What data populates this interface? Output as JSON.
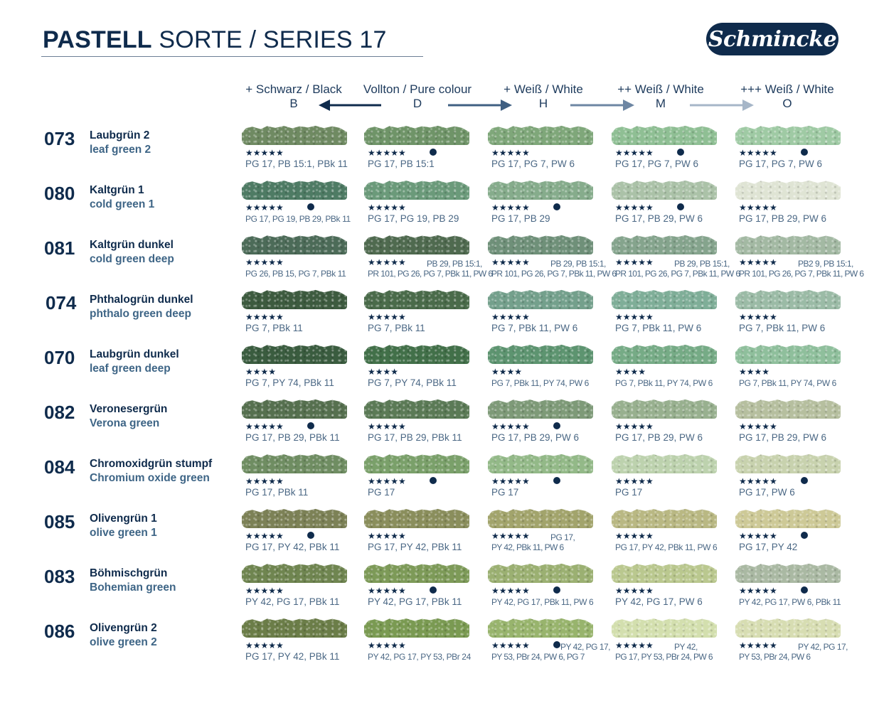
{
  "header": {
    "title_bold": "PASTELL",
    "title_rest": " SORTE / SERIES 17",
    "logo_text": "Schmincke"
  },
  "columns": [
    {
      "label": "+ Schwarz / Black",
      "letter": "B"
    },
    {
      "label": "Vollton / Pure colour",
      "letter": "D"
    },
    {
      "label": "+ Weiß / White",
      "letter": "H"
    },
    {
      "label": "++ Weiß / White",
      "letter": "M"
    },
    {
      "label": "+++ Weiß / White",
      "letter": "O"
    }
  ],
  "colors": {
    "navy": "#0f2b4c",
    "arrow_dark": "#0f2b4c",
    "arrow_mid": "#3f5f82",
    "arrow_light1": "#6d86a3",
    "arrow_light2": "#a6b6c8"
  },
  "rows": [
    {
      "code": "073",
      "name_de": "Laubgrün 2",
      "name_en": "leaf green 2",
      "cells": [
        {
          "color": "#6f8a62",
          "stars": "★★★★★",
          "dot": false,
          "pigments": "PG 17, PB 15:1, PBk 11"
        },
        {
          "color": "#6f9468",
          "stars": "★★★★★",
          "dot": true,
          "pigments": "PG 17, PB 15:1"
        },
        {
          "color": "#7fa77a",
          "stars": "★★★★★",
          "dot": false,
          "pigments": "PG 17, PG 7, PW 6"
        },
        {
          "color": "#8fbf94",
          "stars": "★★★★★",
          "dot": true,
          "pigments": "PG 17, PG 7, PW 6"
        },
        {
          "color": "#9fcaa4",
          "stars": "★★★★★",
          "dot": true,
          "pigments": "PG 17, PG 7, PW 6"
        }
      ]
    },
    {
      "code": "080",
      "name_de": "Kaltgrün 1",
      "name_en": "cold green 1",
      "cells": [
        {
          "color": "#4e7b64",
          "stars": "★★★★★",
          "dot": true,
          "pigments": "PG 17, PG 19, PB 29, PBk 11",
          "tight": true
        },
        {
          "color": "#6b9a7a",
          "stars": "★★★★★",
          "dot": false,
          "pigments": "PG 17, PG 19, PB 29"
        },
        {
          "color": "#86ac8c",
          "stars": "★★★★★",
          "dot": true,
          "pigments": "PG 17, PB 29"
        },
        {
          "color": "#abc2a8",
          "stars": "★★★★★",
          "dot": true,
          "pigments": "PG 17, PB 29, PW 6"
        },
        {
          "color": "#dfe4d4",
          "stars": "★★★★★",
          "dot": false,
          "pigments": "PG 17, PB 29, PW 6"
        }
      ]
    },
    {
      "code": "081",
      "name_de": "Kaltgrün dunkel",
      "name_en": "cold green deep",
      "cells": [
        {
          "color": "#4c6b58",
          "stars": "★★★★★",
          "dot": false,
          "pigments": "PG 26, PB 15, PG 7, PBk 11",
          "tight": true
        },
        {
          "color": "#4f6a4f",
          "stars": "★★★★★",
          "dot": false,
          "pigments_two": [
            "PB 29, PB 15:1,",
            "PR 101, PG 26, PG 7, PBk 11, PW 6"
          ]
        },
        {
          "color": "#6f9079",
          "stars": "★★★★★",
          "dot": false,
          "pigments_two": [
            "PB 29, PB 15:1,",
            "PR 101, PG 26, PG 7, PBk 11, PW 6"
          ]
        },
        {
          "color": "#85a48d",
          "stars": "★★★★★",
          "dot": false,
          "pigments_two": [
            "PB 29, PB 15:1,",
            "PR 101, PG 26, PG 7, PBk 11, PW 6"
          ]
        },
        {
          "color": "#a3b9a3",
          "stars": "★★★★★",
          "dot": false,
          "pigments_two": [
            "PB2 9, PB 15:1,",
            "PR 101, PG 26, PG 7, PBk 11, PW 6"
          ]
        }
      ]
    },
    {
      "code": "074",
      "name_de": "Phthalogrün dunkel",
      "name_en": "phthalo green deep",
      "cells": [
        {
          "color": "#3d5b3f",
          "stars": "★★★★★",
          "dot": false,
          "pigments": "PG 7, PBk 11"
        },
        {
          "color": "#4a6b4a",
          "stars": "★★★★★",
          "dot": false,
          "pigments": "PG 7, PBk 11"
        },
        {
          "color": "#74a08c",
          "stars": "★★★★★",
          "dot": false,
          "pigments": "PG 7, PBk 11, PW 6"
        },
        {
          "color": "#7fae98",
          "stars": "★★★★★",
          "dot": false,
          "pigments": "PG 7, PBk 11, PW 6"
        },
        {
          "color": "#9bbba6",
          "stars": "★★★★★",
          "dot": false,
          "pigments": "PG 7, PBk 11, PW 6"
        }
      ]
    },
    {
      "code": "070",
      "name_de": "Laubgrün dunkel",
      "name_en": "leaf green deep",
      "cells": [
        {
          "color": "#3a5c3f",
          "stars": "★★★★",
          "dot": false,
          "pigments": "PG 7, PY 74, PBk 11"
        },
        {
          "color": "#427049",
          "stars": "★★★★",
          "dot": false,
          "pigments": "PG 7, PY 74, PBk 11"
        },
        {
          "color": "#5d9470",
          "stars": "★★★★",
          "dot": false,
          "pigments": "PG 7, PBk 11, PY 74, PW 6",
          "tight": true
        },
        {
          "color": "#76ab86",
          "stars": "★★★★",
          "dot": false,
          "pigments": "PG 7, PBk 11, PY 74, PW 6",
          "tight": true
        },
        {
          "color": "#8fbf9c",
          "stars": "★★★★",
          "dot": false,
          "pigments": "PG 7, PBk 11, PY 74, PW 6",
          "tight": true
        }
      ]
    },
    {
      "code": "082",
      "name_de": "Veronesergrün",
      "name_en": "Verona green",
      "cells": [
        {
          "color": "#56704f",
          "stars": "★★★★★",
          "dot": true,
          "pigments": "PG 17, PB 29, PBk 11"
        },
        {
          "color": "#5b7a56",
          "stars": "★★★★★",
          "dot": false,
          "pigments": "PG 17, PB 29, PBk 11"
        },
        {
          "color": "#7e9a78",
          "stars": "★★★★★",
          "dot": true,
          "pigments": "PG 17, PB 29, PW 6"
        },
        {
          "color": "#98b08f",
          "stars": "★★★★★",
          "dot": false,
          "pigments": "PG 17, PB 29, PW 6"
        },
        {
          "color": "#b6bf9f",
          "stars": "★★★★★",
          "dot": false,
          "pigments": "PG 17, PB 29, PW 6"
        }
      ]
    },
    {
      "code": "084",
      "name_de": "Chromoxidgrün stumpf",
      "name_en": "Chromium oxide green",
      "cells": [
        {
          "color": "#6f8d62",
          "stars": "★★★★★",
          "dot": false,
          "pigments": "PG 17, PBk 11"
        },
        {
          "color": "#7aa06a",
          "stars": "★★★★★",
          "dot": true,
          "pigments": "PG 17"
        },
        {
          "color": "#93b988",
          "stars": "★★★★★",
          "dot": true,
          "pigments": "PG 17"
        },
        {
          "color": "#bdd2ae",
          "stars": "★★★★★",
          "dot": false,
          "pigments": "PG 17"
        },
        {
          "color": "#c8d2ae",
          "stars": "★★★★★",
          "dot": true,
          "pigments": "PG 17, PW 6"
        }
      ]
    },
    {
      "code": "085",
      "name_de": "Olivengrün 1",
      "name_en": "olive green 1",
      "cells": [
        {
          "color": "#7c8156",
          "stars": "★★★★★",
          "dot": true,
          "pigments": "PG 17, PY 42, PBk 11"
        },
        {
          "color": "#8a8e5c",
          "stars": "★★★★★",
          "dot": false,
          "pigments": "PG 17, PY 42, PBk 11"
        },
        {
          "color": "#a2a46c",
          "stars": "★★★★★",
          "dot": false,
          "pigments_two": [
            "PG 17,",
            "PY 42, PBk 11, PW 6"
          ]
        },
        {
          "color": "#b9b883",
          "stars": "★★★★★",
          "dot": false,
          "pigments": "PG 17, PY 42, PBk 11, PW 6",
          "tight": true
        },
        {
          "color": "#cdc997",
          "stars": "★★★★★",
          "dot": true,
          "pigments": "PG 17, PY 42"
        }
      ]
    },
    {
      "code": "083",
      "name_de": "Böhmischgrün",
      "name_en": "Bohemian green",
      "cells": [
        {
          "color": "#6f8550",
          "stars": "★★★★★",
          "dot": false,
          "pigments": "PY 42, PG 17, PBk 11"
        },
        {
          "color": "#7d9a58",
          "stars": "★★★★★",
          "dot": true,
          "pigments": "PY 42, PG 17, PBk 11"
        },
        {
          "color": "#9bb072",
          "stars": "★★★★★",
          "dot": true,
          "pigments": "PY 42, PG 17, PBk 11, PW 6",
          "tight": true
        },
        {
          "color": "#bac88f",
          "stars": "★★★★★",
          "dot": false,
          "pigments": "PY 42, PG 17, PW 6"
        },
        {
          "color": "#aab9a3",
          "stars": "★★★★★",
          "dot": true,
          "pigments": "PY 42, PG 17, PW 6, PBk 11",
          "tight": true
        }
      ]
    },
    {
      "code": "086",
      "name_de": "Olivengrün 2",
      "name_en": "olive green 2",
      "cells": [
        {
          "color": "#6b7d48",
          "stars": "★★★★★",
          "dot": false,
          "pigments": "PG 17, PY 42, PBk 11"
        },
        {
          "color": "#7a9a52",
          "stars": "★★★★★",
          "dot": false,
          "pigments": "PY 42, PG 17, PY 53, PBr 24",
          "tight": true
        },
        {
          "color": "#98b46d",
          "stars": "★★★★★",
          "dot": true,
          "pigments_two": [
            "PY 42, PG 17,",
            "PY 53, PBr 24, PW 6, PG 7"
          ]
        },
        {
          "color": "#d3dfae",
          "stars": "★★★★★",
          "dot": false,
          "pigments_two": [
            "PY 42,",
            "PG 17, PY 53, PBr 24, PW 6"
          ]
        },
        {
          "color": "#d7ddb2",
          "stars": "★★★★★",
          "dot": false,
          "pigments_two": [
            "PY 42, PG 17,",
            "PY 53, PBr 24, PW 6"
          ]
        }
      ]
    }
  ]
}
